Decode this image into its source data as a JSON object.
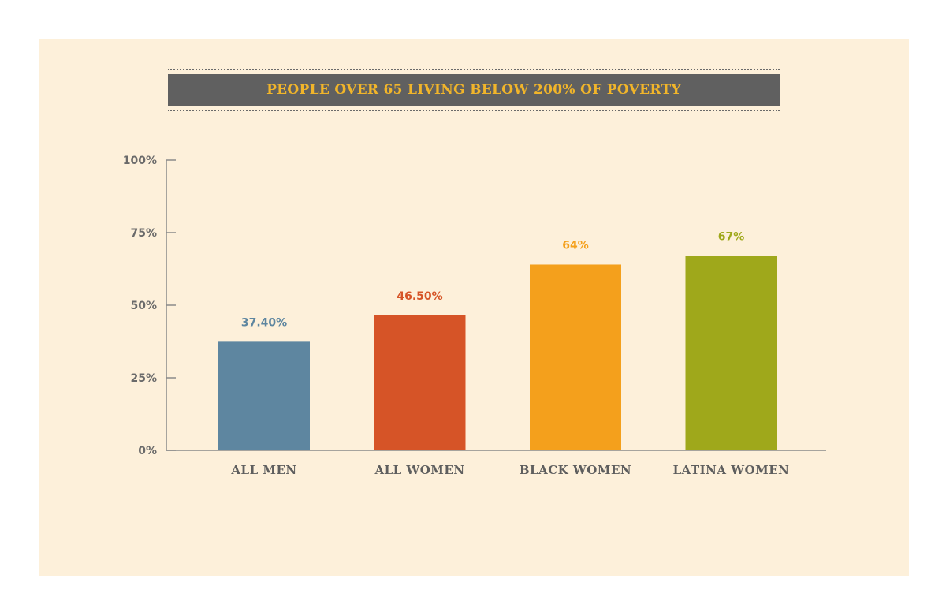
{
  "chart_data": {
    "type": "bar",
    "title": "PEOPLE OVER 65 LIVING BELOW 200% OF POVERTY",
    "categories": [
      "ALL MEN",
      "ALL WOMEN",
      "BLACK WOMEN",
      "LATINA WOMEN"
    ],
    "values": [
      37.4,
      46.5,
      64,
      67
    ],
    "value_labels": [
      "37.40%",
      "46.50%",
      "64%",
      "67%"
    ],
    "colors": [
      "#5e86a0",
      "#d65427",
      "#f4a01c",
      "#9fa81b"
    ],
    "ylim": [
      0,
      100
    ],
    "yticks": [
      0,
      25,
      50,
      75,
      100
    ],
    "ytick_labels": [
      "0%",
      "25%",
      "50%",
      "75%",
      "100%"
    ],
    "xlabel": "",
    "ylabel": "",
    "grid": false,
    "legend": "none"
  }
}
